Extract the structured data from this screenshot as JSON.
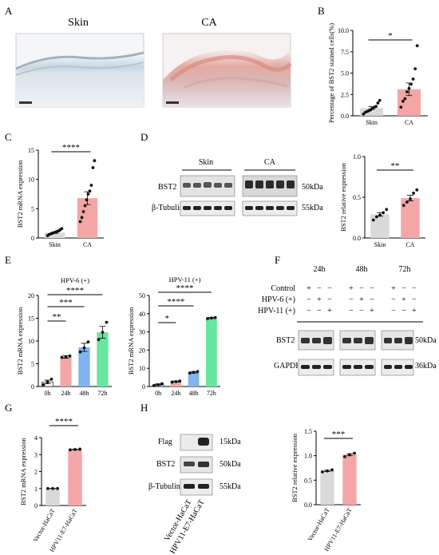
{
  "panels": {
    "A": {
      "letter": "A",
      "skin_label": "Skin",
      "ca_label": "CA"
    },
    "B": {
      "letter": "B",
      "ylabel": "Percentage of BST2 stained cells(%)",
      "sig": "*"
    },
    "C": {
      "letter": "C",
      "ylabel": "BST2 mRNA expression",
      "sig": "****"
    },
    "D": {
      "letter": "D",
      "group_skin": "Skin",
      "group_ca": "CA",
      "row1": "BST2",
      "row2": "β-Tubulin",
      "kda1": "50kDa",
      "kda2": "55kDa",
      "ylabel": "BST2 relative expression",
      "sig": "**"
    },
    "E": {
      "letter": "E",
      "title1": "HPV-6 (+)",
      "title2": "HPV-11 (+)",
      "ylabel": "BST2 mRNA expression",
      "sig1": [
        "**",
        "***",
        "****"
      ],
      "sig2": [
        "*",
        "****",
        "****"
      ]
    },
    "F": {
      "letter": "F",
      "times": [
        "24h",
        "48h",
        "72h"
      ],
      "rows": [
        "Control",
        "HPV-6 (+)",
        "HPV-11 (+)"
      ],
      "signs": [
        [
          "+",
          "−",
          "−"
        ],
        [
          "−",
          "+",
          "−"
        ],
        [
          "−",
          "−",
          "+"
        ]
      ],
      "blot1": "BST2",
      "blot2": "GAPDH",
      "kda1": "50kDa",
      "kda2": "36kDa"
    },
    "G": {
      "letter": "G",
      "ylabel": "BST2 mRNA expression",
      "sig": "****"
    },
    "H": {
      "letter": "H",
      "row1": "Flag",
      "row2": "BST2",
      "row3": "β-Tubulin",
      "kda1": "15kDa",
      "kda2": "50kDa",
      "kda3": "55kDa",
      "lane1": "Vector-HaCaT",
      "lane2": "HPV11-E7-HaCaT",
      "ylabel": "BST2 relative expression",
      "sig": "***"
    }
  },
  "chart_data": [
    {
      "id": "B",
      "type": "bar",
      "categories": [
        "Skin",
        "CA"
      ],
      "values": [
        0.9,
        3.1
      ],
      "ylim": [
        0,
        10
      ],
      "yticks": [
        0.0,
        2.5,
        5.0,
        7.5,
        10.0
      ],
      "ylabel": "Percentage of BST2 stained cells(%)",
      "colors": [
        "#d9d9d9",
        "#f4a6a6"
      ],
      "points": [
        [
          0.2,
          0.4,
          0.5,
          0.6,
          0.7,
          0.9,
          1.0,
          1.1,
          1.5,
          1.8
        ],
        [
          1.0,
          1.7,
          2.0,
          2.8,
          3.2,
          3.7,
          4.3,
          5.5,
          8.2
        ]
      ]
    },
    {
      "id": "C",
      "type": "bar",
      "categories": [
        "Skin",
        "CA"
      ],
      "values": [
        0.9,
        6.8
      ],
      "ylim": [
        0,
        15
      ],
      "yticks": [
        0,
        5,
        10,
        15
      ],
      "ylabel": "BST2 mRNA expression",
      "colors": [
        "#d9d9d9",
        "#f4a6a6"
      ],
      "points": [
        [
          0.4,
          0.6,
          0.7,
          0.8,
          0.9,
          1.0,
          1.1,
          1.2,
          1.4,
          1.6
        ],
        [
          2.8,
          3.5,
          4.5,
          5.5,
          6.5,
          7.5,
          8.0,
          9.0,
          12.0,
          13.2
        ]
      ]
    },
    {
      "id": "D",
      "type": "bar",
      "categories": [
        "Skin",
        "CA"
      ],
      "values": [
        0.29,
        0.49
      ],
      "ylim": [
        0,
        1.0
      ],
      "yticks": [
        0.0,
        0.5,
        1.0
      ],
      "ylabel": "BST2 relative expression",
      "colors": [
        "#d9d9d9",
        "#f4a6a6"
      ],
      "points": [
        [
          0.22,
          0.26,
          0.28,
          0.31,
          0.35
        ],
        [
          0.4,
          0.44,
          0.48,
          0.55,
          0.59
        ]
      ]
    },
    {
      "id": "E1",
      "type": "bar",
      "categories": [
        "0h",
        "24h",
        "48h",
        "72h"
      ],
      "values": [
        1.0,
        6.5,
        8.6,
        11.9
      ],
      "errors": [
        0.4,
        0.3,
        0.9,
        1.3
      ],
      "ylim": [
        0,
        20
      ],
      "yticks": [
        0,
        5,
        10,
        15,
        20
      ],
      "ylabel": "BST2 mRNA expression",
      "title": "HPV-6 (+)",
      "colors": [
        "#ffffff",
        "#f4a6a6",
        "#80b3f0",
        "#66e6a0"
      ],
      "points": [
        [
          0.4,
          1.0,
          1.6
        ],
        [
          6.4,
          6.5,
          6.7
        ],
        [
          7.6,
          8.5,
          9.8
        ],
        [
          10.3,
          11.9,
          14.1
        ]
      ]
    },
    {
      "id": "E2",
      "type": "bar",
      "categories": [
        "0h",
        "24h",
        "48h",
        "72h"
      ],
      "values": [
        1.0,
        2.7,
        7.8,
        37.6
      ],
      "errors": [
        0.4,
        0.3,
        0.4,
        0.3
      ],
      "ylim": [
        0,
        50
      ],
      "yticks": [
        0,
        10,
        20,
        30,
        40,
        50
      ],
      "ylabel": "BST2 mRNA expression",
      "title": "HPV-11 (+)",
      "colors": [
        "#ffffff",
        "#f4a6a6",
        "#80b3f0",
        "#66e6a0"
      ],
      "points": [
        [
          0.5,
          1.0,
          1.5
        ],
        [
          2.4,
          2.7,
          3.0
        ],
        [
          7.4,
          7.8,
          8.2
        ],
        [
          37.3,
          37.6,
          37.9
        ]
      ]
    },
    {
      "id": "G",
      "type": "bar",
      "categories": [
        "Vector-HaCaT",
        "HPV11-E7-HaCaT"
      ],
      "values": [
        1.0,
        3.3
      ],
      "ylim": [
        0,
        4
      ],
      "yticks": [
        0,
        1,
        2,
        3,
        4
      ],
      "ylabel": "BST2 mRNA expression",
      "colors": [
        "#d9d9d9",
        "#f4a6a6"
      ],
      "points": [
        [
          1.0,
          1.0,
          1.0
        ],
        [
          3.28,
          3.3,
          3.32
        ]
      ]
    },
    {
      "id": "H",
      "type": "bar",
      "categories": [
        "Vector-HaCaT",
        "HPV11-E7-HaCaT"
      ],
      "values": [
        0.69,
        1.02
      ],
      "ylim": [
        0,
        1.5
      ],
      "yticks": [
        0.0,
        0.5,
        1.0,
        1.5
      ],
      "ylabel": "BST2 relative expression",
      "colors": [
        "#d9d9d9",
        "#f4a6a6"
      ],
      "points": [
        [
          0.67,
          0.69,
          0.71
        ],
        [
          0.98,
          1.02,
          1.05
        ]
      ]
    }
  ]
}
